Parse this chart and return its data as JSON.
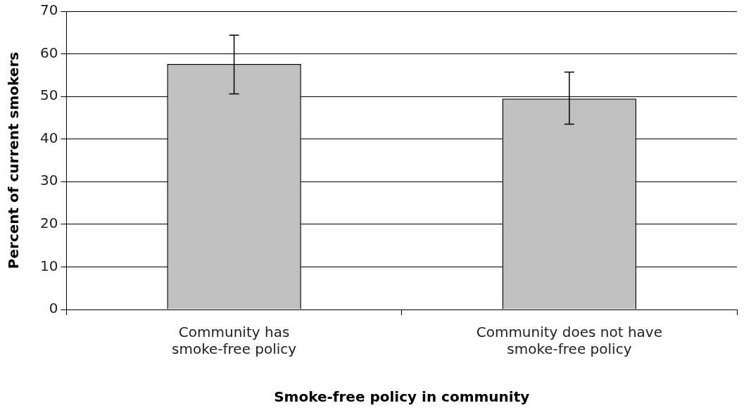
{
  "chart_data": {
    "type": "bar",
    "xlabel": "Smoke-free policy in community",
    "ylabel": "Percent of current smokers",
    "categories": [
      "Community has smoke-free policy",
      "Community does not have smoke-free policy"
    ],
    "values": [
      57.6,
      49.5
    ],
    "errors": [
      [
        50.6,
        64.4
      ],
      [
        43.5,
        55.7
      ]
    ],
    "color": "#c0c0c0",
    "ylim": [
      0,
      70
    ],
    "yticks": [
      0,
      10,
      20,
      30,
      40,
      50,
      60,
      70
    ],
    "grid": "y"
  }
}
